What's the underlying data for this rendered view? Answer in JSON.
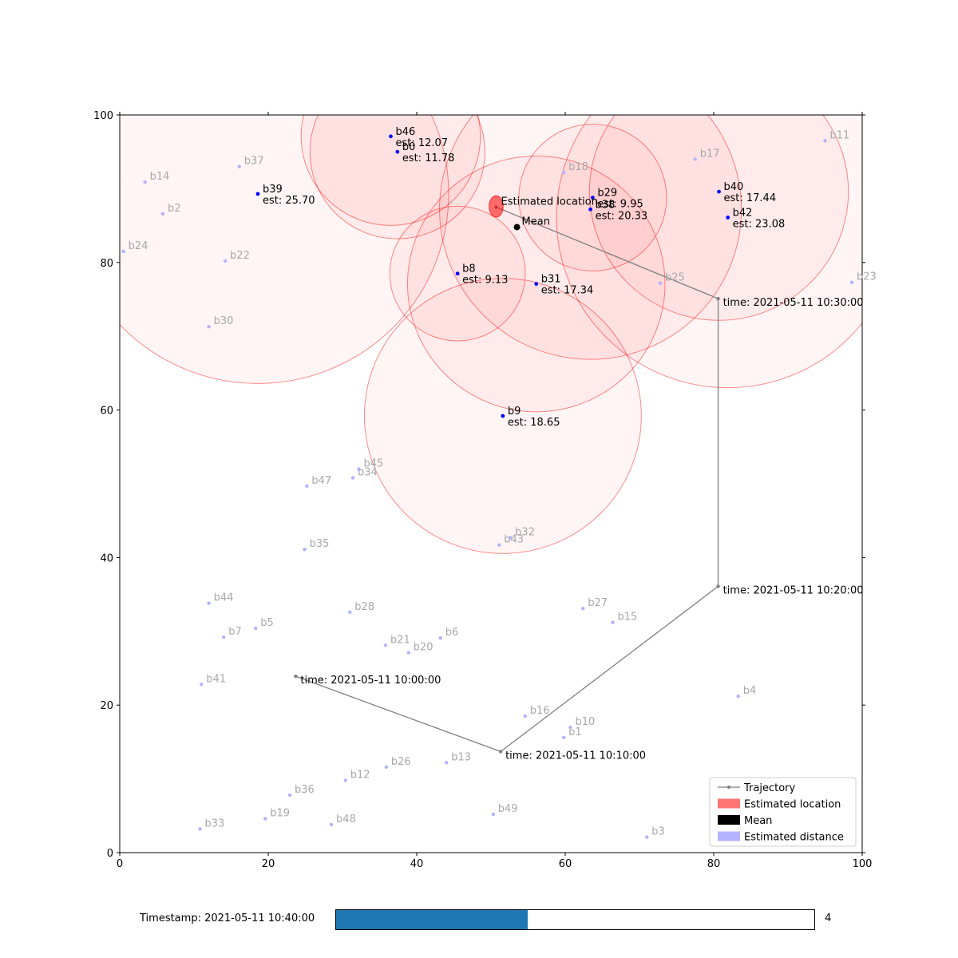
{
  "chart_data": {
    "type": "scatter",
    "title": "",
    "xlabel": "",
    "ylabel": "",
    "xlim": [
      0,
      100
    ],
    "ylim": [
      0,
      100
    ],
    "xticks": [
      "0",
      "20",
      "40",
      "60",
      "80",
      "100"
    ],
    "yticks": [
      "0",
      "20",
      "40",
      "60",
      "80",
      "100"
    ],
    "grid": false,
    "legend_placement": "lower-right",
    "colors": {
      "estimated_location": "#ff0000",
      "mean": "#000000",
      "beacon_active": "#0000ff",
      "beacon_inactive": "#b3b3ff",
      "trajectory": "#808080",
      "label_inactive": "#a8a8a8"
    },
    "inactive_beacons": [
      {
        "name": "b1",
        "x": 59.8,
        "y": 15.6
      },
      {
        "name": "b2",
        "x": 5.8,
        "y": 86.6
      },
      {
        "name": "b3",
        "x": 71.0,
        "y": 2.1
      },
      {
        "name": "b4",
        "x": 83.3,
        "y": 21.2
      },
      {
        "name": "b5",
        "x": 18.3,
        "y": 30.4
      },
      {
        "name": "b6",
        "x": 43.2,
        "y": 29.1
      },
      {
        "name": "b7",
        "x": 14.0,
        "y": 29.2
      },
      {
        "name": "b10",
        "x": 60.7,
        "y": 17.0
      },
      {
        "name": "b11",
        "x": 95.0,
        "y": 96.5
      },
      {
        "name": "b12",
        "x": 30.4,
        "y": 9.8
      },
      {
        "name": "b13",
        "x": 44.0,
        "y": 12.2
      },
      {
        "name": "b14",
        "x": 3.4,
        "y": 90.9
      },
      {
        "name": "b15",
        "x": 66.4,
        "y": 31.2
      },
      {
        "name": "b16",
        "x": 54.6,
        "y": 18.5
      },
      {
        "name": "b17",
        "x": 77.5,
        "y": 94.0
      },
      {
        "name": "b18",
        "x": 59.8,
        "y": 92.2
      },
      {
        "name": "b19",
        "x": 19.6,
        "y": 4.6
      },
      {
        "name": "b20",
        "x": 38.9,
        "y": 27.1
      },
      {
        "name": "b21",
        "x": 35.8,
        "y": 28.1
      },
      {
        "name": "b22",
        "x": 14.2,
        "y": 80.2
      },
      {
        "name": "b23",
        "x": 98.6,
        "y": 77.3
      },
      {
        "name": "b24",
        "x": 0.5,
        "y": 81.5
      },
      {
        "name": "b25",
        "x": 72.8,
        "y": 77.2
      },
      {
        "name": "b26",
        "x": 35.9,
        "y": 11.6
      },
      {
        "name": "b27",
        "x": 62.4,
        "y": 33.1
      },
      {
        "name": "b28",
        "x": 31.0,
        "y": 32.6
      },
      {
        "name": "b30",
        "x": 12.0,
        "y": 71.3
      },
      {
        "name": "b32",
        "x": 52.6,
        "y": 42.7
      },
      {
        "name": "b33",
        "x": 10.8,
        "y": 3.2
      },
      {
        "name": "b34",
        "x": 31.4,
        "y": 50.8
      },
      {
        "name": "b35",
        "x": 24.9,
        "y": 41.1
      },
      {
        "name": "b36",
        "x": 22.9,
        "y": 7.8
      },
      {
        "name": "b37",
        "x": 16.1,
        "y": 93.0
      },
      {
        "name": "b41",
        "x": 11.0,
        "y": 22.8
      },
      {
        "name": "b43",
        "x": 51.1,
        "y": 41.7
      },
      {
        "name": "b44",
        "x": 12.0,
        "y": 33.8
      },
      {
        "name": "b45",
        "x": 32.2,
        "y": 52.0
      },
      {
        "name": "b47",
        "x": 25.2,
        "y": 49.7
      },
      {
        "name": "b48",
        "x": 28.5,
        "y": 3.8
      },
      {
        "name": "b49",
        "x": 50.3,
        "y": 5.2
      }
    ],
    "active_beacons": [
      {
        "name": "b46",
        "x": 36.5,
        "y": 97.1,
        "est_label": "est: 12.07",
        "est": 12.07
      },
      {
        "name": "b0",
        "x": 37.4,
        "y": 95.0,
        "est_label": "est: 11.78",
        "est": 11.78
      },
      {
        "name": "b39",
        "x": 18.6,
        "y": 89.3,
        "est_label": "est: 25.70",
        "est": 25.7
      },
      {
        "name": "b29",
        "x": 63.7,
        "y": 88.8,
        "est_label": "est: 9.95",
        "est": 9.95
      },
      {
        "name": "b38",
        "x": 63.4,
        "y": 87.2,
        "est_label": "est: 20.33",
        "est": 20.33
      },
      {
        "name": "b40",
        "x": 80.7,
        "y": 89.6,
        "est_label": "est: 17.44",
        "est": 17.44
      },
      {
        "name": "b42",
        "x": 81.9,
        "y": 86.1,
        "est_label": "est: 23.08",
        "est": 23.08
      },
      {
        "name": "b8",
        "x": 45.5,
        "y": 78.5,
        "est_label": "est: 9.13",
        "est": 9.13
      },
      {
        "name": "b31",
        "x": 56.1,
        "y": 77.1,
        "est_label": "est: 17.34",
        "est": 17.34
      },
      {
        "name": "b9",
        "x": 51.6,
        "y": 59.2,
        "est_label": "est: 18.65",
        "est": 18.65
      }
    ],
    "trajectory": [
      {
        "time": "time: 2021-05-11 10:00:00",
        "x": 23.7,
        "y": 23.9,
        "labeled": true
      },
      {
        "time": "time: 2021-05-11 10:10:00",
        "x": 51.3,
        "y": 13.7,
        "labeled": true
      },
      {
        "time": "time: 2021-05-11 10:20:00",
        "x": 80.6,
        "y": 36.1,
        "labeled": true
      },
      {
        "time": "time: 2021-05-11 10:30:00",
        "x": 80.6,
        "y": 75.1,
        "labeled": true
      },
      {
        "time": "",
        "x": 50.7,
        "y": 87.5,
        "labeled": false
      }
    ],
    "estimated_location": {
      "label": "Estimated location",
      "x": 50.7,
      "y": 87.6,
      "rx": 0.95,
      "ry": 1.45
    },
    "mean": {
      "label": "Mean",
      "x": 53.5,
      "y": 84.8
    },
    "legend": [
      {
        "label": "Trajectory",
        "kind": "line"
      },
      {
        "label": "Estimated location",
        "kind": "patch-red"
      },
      {
        "label": "Mean",
        "kind": "patch-black"
      },
      {
        "label": "Estimated distance",
        "kind": "patch-blue"
      }
    ]
  },
  "slider": {
    "label": "Timestamp: 2021-05-11 10:40:00",
    "value": 4,
    "value_text": "4",
    "fill_fraction": 0.4
  }
}
